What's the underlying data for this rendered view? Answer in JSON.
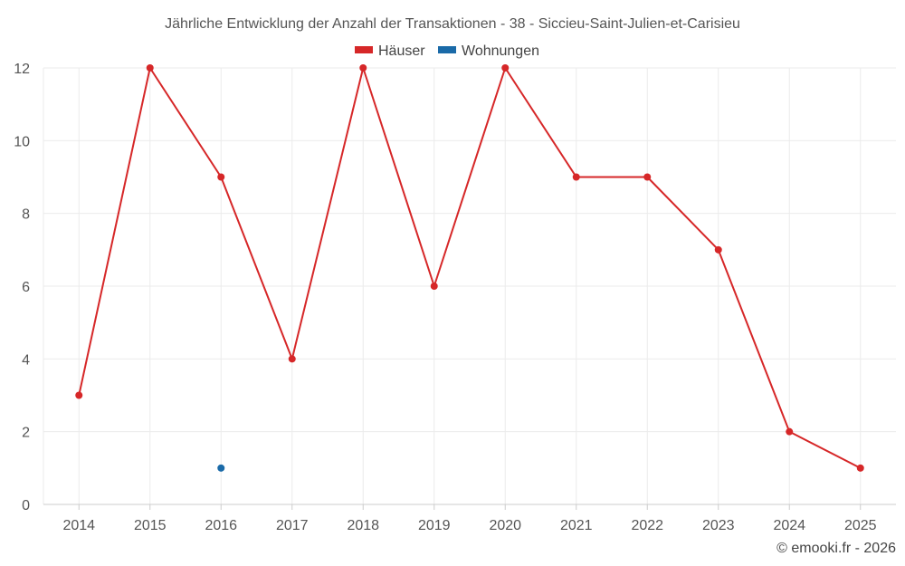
{
  "chart_data": {
    "type": "line",
    "title": "Jährliche Entwicklung der Anzahl der Transaktionen - 38 - Siccieu-Saint-Julien-et-Carisieu",
    "xlabel": "",
    "ylabel": "",
    "categories": [
      "2014",
      "2015",
      "2016",
      "2017",
      "2018",
      "2019",
      "2020",
      "2021",
      "2022",
      "2023",
      "2024",
      "2025"
    ],
    "ylim": [
      0,
      12
    ],
    "yticks": [
      "0",
      "2",
      "4",
      "6",
      "8",
      "10",
      "12"
    ],
    "grid": true,
    "legend_position": "top-center",
    "series": [
      {
        "name": "Häuser",
        "color": "#d62728",
        "values": [
          3,
          12,
          9,
          4,
          12,
          6,
          12,
          9,
          9,
          7,
          2,
          1
        ]
      },
      {
        "name": "Wohnungen",
        "color": "#1a6aa8",
        "values": [
          null,
          null,
          1,
          null,
          null,
          null,
          null,
          null,
          null,
          null,
          null,
          null
        ]
      }
    ]
  },
  "credit": "© emooki.fr - 2026"
}
